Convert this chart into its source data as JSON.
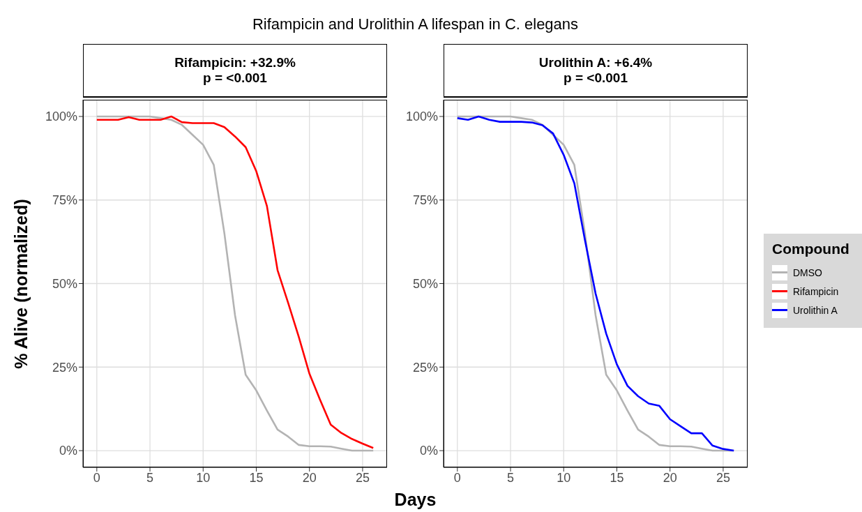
{
  "chart_data": [
    {
      "type": "line",
      "title": "Rifampicin and Urolithin A lifespan in C. elegans",
      "subtitle": "Rifampicin: +32.9%\np = <0.001",
      "ylabel": "% Alive (normalized)",
      "xlabel": "Days",
      "x": [
        0,
        1,
        2,
        3,
        4,
        5,
        6,
        7,
        8,
        9,
        10,
        11,
        12,
        13,
        14,
        15,
        16,
        17,
        18,
        19,
        20,
        21,
        22,
        23,
        24,
        25,
        26
      ],
      "series": [
        {
          "name": "DMSO",
          "color": "#b3b3b3",
          "values": [
            100,
            100,
            100,
            100,
            100,
            100,
            99.5,
            99,
            97.5,
            94.5,
            91.5,
            85.5,
            65,
            40.5,
            22.7,
            18,
            12,
            6.3,
            4.2,
            1.7,
            1.3,
            1.3,
            1.2,
            0.6,
            0,
            0,
            0
          ]
        },
        {
          "name": "Rifampicin",
          "color": "#ff0000",
          "values": [
            99,
            99,
            99,
            99.8,
            99,
            99,
            99,
            100,
            98.3,
            98,
            98,
            98,
            96.8,
            94,
            90.8,
            83.6,
            73.2,
            54,
            44.2,
            34,
            23,
            15.2,
            7.8,
            5.3,
            3.5,
            2.1,
            0.8
          ]
        }
      ],
      "xlim": [
        -1.3,
        27.3
      ],
      "xticks": [
        0,
        5,
        10,
        15,
        20,
        25
      ],
      "ylim": [
        -5,
        105
      ],
      "yticks": [
        {
          "value": 0,
          "label": "0%"
        },
        {
          "value": 25,
          "label": "25%"
        },
        {
          "value": 50,
          "label": "50%"
        },
        {
          "value": 75,
          "label": "75%"
        },
        {
          "value": 100,
          "label": "100%"
        }
      ],
      "grid": true,
      "line_style": "solid",
      "marker": "none",
      "legend": "right"
    },
    {
      "type": "line",
      "subtitle": "Urolithin A: +6.4%\np = <0.001",
      "legend_title": "Compound",
      "legend": "right",
      "x": [
        0,
        1,
        2,
        3,
        4,
        5,
        6,
        7,
        8,
        9,
        10,
        11,
        12,
        13,
        14,
        15,
        16,
        17,
        18,
        19,
        20,
        21,
        22,
        23,
        24,
        25,
        26
      ],
      "series": [
        {
          "name": "DMSO",
          "color": "#b3b3b3",
          "values": [
            100,
            100,
            100,
            100,
            100,
            100,
            99.5,
            99,
            97.5,
            94.5,
            91.5,
            85.5,
            65,
            40.5,
            22.7,
            18,
            12,
            6.3,
            4.2,
            1.7,
            1.3,
            1.3,
            1.2,
            0.6,
            0,
            0,
            0
          ]
        },
        {
          "name": "Urolithin A",
          "color": "#0000ff",
          "values": [
            99.5,
            99,
            100,
            99,
            98.4,
            98.4,
            98.4,
            98.2,
            97.4,
            94.9,
            88.5,
            80,
            63,
            47,
            35,
            25.8,
            19.4,
            16.3,
            14.1,
            13.4,
            9.4,
            7.3,
            5.2,
            5.2,
            1.5,
            0.5,
            0
          ]
        }
      ],
      "xlim": [
        -1.3,
        27.3
      ],
      "xticks": [
        0,
        5,
        10,
        15,
        20,
        25
      ],
      "ylim": [
        -5,
        105
      ],
      "yticks": [
        {
          "value": 0,
          "label": "0%"
        },
        {
          "value": 25,
          "label": "25%"
        },
        {
          "value": 50,
          "label": "50%"
        },
        {
          "value": 75,
          "label": "75%"
        },
        {
          "value": 100,
          "label": "100%"
        }
      ],
      "grid": true,
      "line_style": "solid",
      "marker": "none"
    }
  ]
}
